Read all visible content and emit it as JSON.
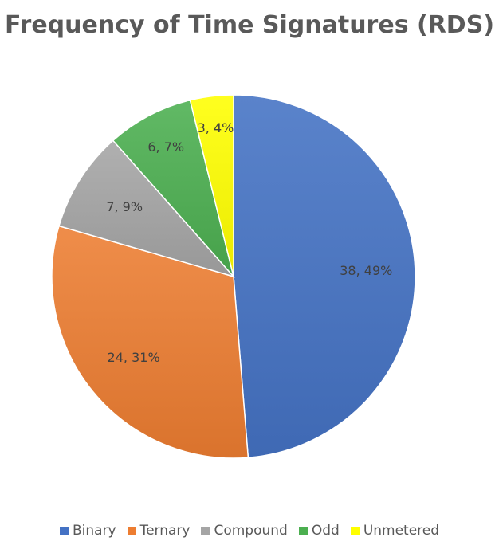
{
  "chart_data": {
    "type": "pie",
    "title": "Frequency of Time Signatures (RDS)",
    "categories": [
      "Binary",
      "Ternary",
      "Compound",
      "Odd",
      "Unmetered"
    ],
    "values": [
      38,
      24,
      7,
      6,
      3
    ],
    "percent_labels": [
      "49%",
      "31%",
      "9%",
      "7%",
      "4%"
    ],
    "data_labels": [
      "38, 49%",
      "24, 31%",
      "7, 9%",
      "6, 7%",
      "3, 4%"
    ],
    "colors": [
      "#4472C4",
      "#ED7D31",
      "#A5A5A5",
      "#4CAF50",
      "#FFFF00"
    ],
    "start_angle_deg": 0,
    "direction": "clockwise",
    "legend_position": "bottom"
  },
  "legend": {
    "items": [
      "Binary",
      "Ternary",
      "Compound",
      "Odd",
      "Unmetered"
    ]
  }
}
